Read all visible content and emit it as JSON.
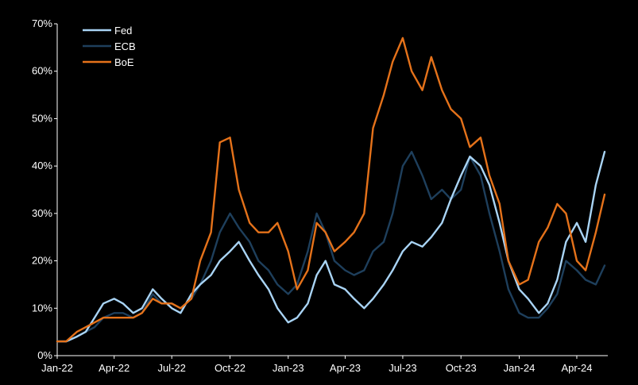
{
  "chart_data": {
    "type": "line",
    "title": "",
    "xlabel": "",
    "ylabel": "",
    "ylim": [
      0,
      70
    ],
    "y_ticks": [
      "0%",
      "10%",
      "20%",
      "30%",
      "40%",
      "50%",
      "60%",
      "70%"
    ],
    "y_tick_values": [
      0,
      10,
      20,
      30,
      40,
      50,
      60,
      70
    ],
    "x_ticks": [
      "Jan-22",
      "Apr-22",
      "Jul-22",
      "Oct-22",
      "Jan-23",
      "Apr-23",
      "Jul-23",
      "Oct-23",
      "Jan-24",
      "Apr-24"
    ],
    "x_tick_values": [
      "2022-01-01",
      "2022-04-01",
      "2022-07-01",
      "2022-10-01",
      "2023-01-01",
      "2023-04-01",
      "2023-07-01",
      "2023-10-01",
      "2024-01-01",
      "2024-04-01"
    ],
    "xlim": [
      "2022-01-01",
      "2024-05-20"
    ],
    "grid": false,
    "legend": "top-left",
    "background": "#000000",
    "series": [
      {
        "name": "Fed",
        "color": "#a9d4f5",
        "x": [
          "2022-01-01",
          "2022-01-15",
          "2022-02-01",
          "2022-02-15",
          "2022-03-01",
          "2022-03-15",
          "2022-04-01",
          "2022-04-15",
          "2022-05-01",
          "2022-05-15",
          "2022-06-01",
          "2022-06-15",
          "2022-07-01",
          "2022-07-15",
          "2022-08-01",
          "2022-08-15",
          "2022-09-01",
          "2022-09-15",
          "2022-10-01",
          "2022-10-15",
          "2022-11-01",
          "2022-11-15",
          "2022-12-01",
          "2022-12-15",
          "2023-01-01",
          "2023-01-15",
          "2023-02-01",
          "2023-02-15",
          "2023-03-01",
          "2023-03-15",
          "2023-04-01",
          "2023-04-15",
          "2023-05-01",
          "2023-05-15",
          "2023-06-01",
          "2023-06-15",
          "2023-07-01",
          "2023-07-15",
          "2023-08-01",
          "2023-08-15",
          "2023-09-01",
          "2023-09-15",
          "2023-10-01",
          "2023-10-15",
          "2023-11-01",
          "2023-11-15",
          "2023-12-01",
          "2023-12-15",
          "2024-01-01",
          "2024-01-15",
          "2024-02-01",
          "2024-02-15",
          "2024-03-01",
          "2024-03-15",
          "2024-04-01",
          "2024-04-15",
          "2024-05-01",
          "2024-05-15"
        ],
        "values": [
          3,
          3,
          4,
          5,
          8,
          11,
          12,
          11,
          9,
          10,
          14,
          12,
          10,
          9,
          13,
          15,
          17,
          20,
          22,
          24,
          20,
          17,
          14,
          10,
          7,
          8,
          11,
          17,
          20,
          15,
          14,
          12,
          10,
          12,
          15,
          18,
          22,
          24,
          23,
          25,
          28,
          33,
          38,
          42,
          40,
          36,
          28,
          20,
          14,
          12,
          9,
          11,
          16,
          24,
          28,
          24,
          36,
          43
        ]
      },
      {
        "name": "ECB",
        "color": "#1e3f5c",
        "x": [
          "2022-01-01",
          "2022-01-15",
          "2022-02-01",
          "2022-02-15",
          "2022-03-01",
          "2022-03-15",
          "2022-04-01",
          "2022-04-15",
          "2022-05-01",
          "2022-05-15",
          "2022-06-01",
          "2022-06-15",
          "2022-07-01",
          "2022-07-15",
          "2022-08-01",
          "2022-08-15",
          "2022-09-01",
          "2022-09-15",
          "2022-10-01",
          "2022-10-15",
          "2022-11-01",
          "2022-11-15",
          "2022-12-01",
          "2022-12-15",
          "2023-01-01",
          "2023-01-15",
          "2023-02-01",
          "2023-02-15",
          "2023-03-01",
          "2023-03-15",
          "2023-04-01",
          "2023-04-15",
          "2023-05-01",
          "2023-05-15",
          "2023-06-01",
          "2023-06-15",
          "2023-07-01",
          "2023-07-15",
          "2023-08-01",
          "2023-08-15",
          "2023-09-01",
          "2023-09-15",
          "2023-10-01",
          "2023-10-15",
          "2023-11-01",
          "2023-11-15",
          "2023-12-01",
          "2023-12-15",
          "2024-01-01",
          "2024-01-15",
          "2024-02-01",
          "2024-02-15",
          "2024-03-01",
          "2024-03-15",
          "2024-04-01",
          "2024-04-15",
          "2024-05-01",
          "2024-05-15"
        ],
        "values": [
          3,
          3,
          4,
          5,
          6,
          8,
          9,
          9,
          8,
          9,
          13,
          11,
          11,
          10,
          12,
          15,
          20,
          26,
          30,
          27,
          24,
          20,
          18,
          15,
          13,
          15,
          22,
          30,
          26,
          20,
          18,
          17,
          18,
          22,
          24,
          30,
          40,
          43,
          38,
          33,
          35,
          33,
          35,
          42,
          38,
          30,
          22,
          14,
          9,
          8,
          8,
          10,
          13,
          20,
          18,
          16,
          15,
          19
        ]
      },
      {
        "name": "BoE",
        "color": "#e5721a",
        "x": [
          "2022-01-01",
          "2022-01-15",
          "2022-02-01",
          "2022-02-15",
          "2022-03-01",
          "2022-03-15",
          "2022-04-01",
          "2022-04-15",
          "2022-05-01",
          "2022-05-15",
          "2022-06-01",
          "2022-06-15",
          "2022-07-01",
          "2022-07-15",
          "2022-08-01",
          "2022-08-15",
          "2022-09-01",
          "2022-09-15",
          "2022-10-01",
          "2022-10-15",
          "2022-11-01",
          "2022-11-15",
          "2022-12-01",
          "2022-12-15",
          "2023-01-01",
          "2023-01-15",
          "2023-02-01",
          "2023-02-15",
          "2023-03-01",
          "2023-03-15",
          "2023-04-01",
          "2023-04-15",
          "2023-05-01",
          "2023-05-15",
          "2023-06-01",
          "2023-06-15",
          "2023-07-01",
          "2023-07-15",
          "2023-08-01",
          "2023-08-15",
          "2023-09-01",
          "2023-09-15",
          "2023-10-01",
          "2023-10-15",
          "2023-11-01",
          "2023-11-15",
          "2023-12-01",
          "2023-12-15",
          "2024-01-01",
          "2024-01-15",
          "2024-02-01",
          "2024-02-15",
          "2024-03-01",
          "2024-03-15",
          "2024-04-01",
          "2024-04-15",
          "2024-05-01",
          "2024-05-15"
        ],
        "values": [
          3,
          3,
          5,
          6,
          7,
          8,
          8,
          8,
          8,
          9,
          12,
          11,
          11,
          10,
          12,
          20,
          26,
          45,
          46,
          35,
          28,
          26,
          26,
          28,
          22,
          14,
          18,
          28,
          26,
          22,
          24,
          26,
          30,
          48,
          55,
          62,
          67,
          60,
          56,
          63,
          56,
          52,
          50,
          44,
          46,
          38,
          32,
          20,
          15,
          16,
          24,
          27,
          32,
          30,
          20,
          18,
          26,
          34
        ]
      }
    ]
  }
}
